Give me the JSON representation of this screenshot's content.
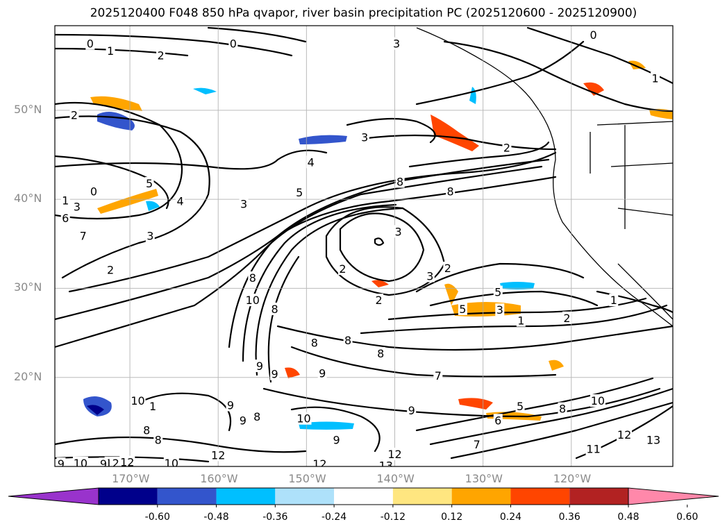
{
  "title": "2025120400 F048 850 hPa qvapor, river basin precipitation PC (2025120600 - 2025120900)",
  "axes": {
    "lat_ticks": [
      {
        "value": 50,
        "label": "50°N"
      },
      {
        "value": 40,
        "label": "40°N"
      },
      {
        "value": 30,
        "label": "30°N"
      },
      {
        "value": 20,
        "label": "20°N"
      }
    ],
    "lon_ticks": [
      {
        "value": -170,
        "label": "170°W"
      },
      {
        "value": -160,
        "label": "160°W"
      },
      {
        "value": -150,
        "label": "150°W"
      },
      {
        "value": -140,
        "label": "140°W"
      },
      {
        "value": -130,
        "label": "130°W"
      },
      {
        "value": -120,
        "label": "120°W"
      }
    ],
    "lon_range": [
      -178.5,
      -108.5
    ],
    "lat_range": [
      10,
      59.5
    ],
    "grid": true
  },
  "colorbar": {
    "bounds": [
      "-0.60",
      "-0.48",
      "-0.36",
      "-0.24",
      "-0.12",
      "0.12",
      "0.24",
      "0.36",
      "0.48",
      "0.60"
    ],
    "colors": [
      "#9933cc",
      "#00008b",
      "#3355cc",
      "#00bfff",
      "#aee1fa",
      "#ffffff",
      "#ffe680",
      "#ffa500",
      "#ff4500",
      "#b22222",
      "#ff88aa"
    ],
    "extend": "both"
  },
  "contour_labels": [
    {
      "text": "0",
      "lon": -174.5,
      "lat": 57.5
    },
    {
      "text": "1",
      "lon": -172.2,
      "lat": 56.7
    },
    {
      "text": "2",
      "lon": -166.5,
      "lat": 56.2
    },
    {
      "text": "0",
      "lon": -158.3,
      "lat": 57.5
    },
    {
      "text": "3",
      "lon": -139.8,
      "lat": 57.5
    },
    {
      "text": "0",
      "lon": -117.5,
      "lat": 58.5
    },
    {
      "text": "1",
      "lon": -110.5,
      "lat": 53.6
    },
    {
      "text": "2",
      "lon": -176.3,
      "lat": 49.5
    },
    {
      "text": "3",
      "lon": -143.4,
      "lat": 47.0
    },
    {
      "text": "2",
      "lon": -127.3,
      "lat": 45.8
    },
    {
      "text": "4",
      "lon": -149.5,
      "lat": 44.2
    },
    {
      "text": "5",
      "lon": -150.8,
      "lat": 40.8
    },
    {
      "text": "8",
      "lon": -139.4,
      "lat": 42.0
    },
    {
      "text": "8",
      "lon": -133.7,
      "lat": 40.9
    },
    {
      "text": "0",
      "lon": -174.1,
      "lat": 40.9
    },
    {
      "text": "1",
      "lon": -177.3,
      "lat": 39.9
    },
    {
      "text": "5",
      "lon": -167.8,
      "lat": 41.8
    },
    {
      "text": "4",
      "lon": -164.3,
      "lat": 39.8
    },
    {
      "text": "3",
      "lon": -176.0,
      "lat": 39.2
    },
    {
      "text": "6",
      "lon": -177.3,
      "lat": 37.9
    },
    {
      "text": "3",
      "lon": -157.1,
      "lat": 39.5
    },
    {
      "text": "7",
      "lon": -175.3,
      "lat": 35.9
    },
    {
      "text": "3",
      "lon": -167.7,
      "lat": 35.9
    },
    {
      "text": "3",
      "lon": -139.6,
      "lat": 36.4
    },
    {
      "text": "2",
      "lon": -172.2,
      "lat": 32.1
    },
    {
      "text": "2",
      "lon": -145.9,
      "lat": 32.2
    },
    {
      "text": "2",
      "lon": -134.0,
      "lat": 32.3
    },
    {
      "text": "3",
      "lon": -136.0,
      "lat": 31.4
    },
    {
      "text": "5",
      "lon": -128.3,
      "lat": 29.6
    },
    {
      "text": "8",
      "lon": -156.1,
      "lat": 31.2
    },
    {
      "text": "10",
      "lon": -156.1,
      "lat": 28.7
    },
    {
      "text": "2",
      "lon": -141.8,
      "lat": 28.7
    },
    {
      "text": "5",
      "lon": -132.3,
      "lat": 27.7
    },
    {
      "text": "3",
      "lon": -128.1,
      "lat": 27.6
    },
    {
      "text": "1",
      "lon": -125.7,
      "lat": 26.4
    },
    {
      "text": "2",
      "lon": -120.5,
      "lat": 26.7
    },
    {
      "text": "1",
      "lon": -115.2,
      "lat": 28.7
    },
    {
      "text": "8",
      "lon": -153.6,
      "lat": 27.7
    },
    {
      "text": "8",
      "lon": -149.1,
      "lat": 23.9
    },
    {
      "text": "8",
      "lon": -145.3,
      "lat": 24.2
    },
    {
      "text": "8",
      "lon": -141.6,
      "lat": 22.7
    },
    {
      "text": "9",
      "lon": -155.3,
      "lat": 21.3
    },
    {
      "text": "9",
      "lon": -153.6,
      "lat": 20.4
    },
    {
      "text": "9",
      "lon": -148.2,
      "lat": 20.5
    },
    {
      "text": "7",
      "lon": -135.1,
      "lat": 20.2
    },
    {
      "text": "10",
      "lon": -169.1,
      "lat": 17.4
    },
    {
      "text": "1",
      "lon": -167.4,
      "lat": 16.8
    },
    {
      "text": "9",
      "lon": -158.6,
      "lat": 16.9
    },
    {
      "text": "8",
      "lon": -155.6,
      "lat": 15.6
    },
    {
      "text": "9",
      "lon": -157.2,
      "lat": 15.2
    },
    {
      "text": "10",
      "lon": -150.3,
      "lat": 15.4
    },
    {
      "text": "9",
      "lon": -146.6,
      "lat": 13.0
    },
    {
      "text": "8",
      "lon": -168.1,
      "lat": 14.1
    },
    {
      "text": "8",
      "lon": -166.8,
      "lat": 13.0
    },
    {
      "text": "9",
      "lon": -138.1,
      "lat": 16.3
    },
    {
      "text": "5",
      "lon": -125.8,
      "lat": 16.8
    },
    {
      "text": "6",
      "lon": -128.3,
      "lat": 15.2
    },
    {
      "text": "8",
      "lon": -121.0,
      "lat": 16.5
    },
    {
      "text": "10",
      "lon": -117.0,
      "lat": 17.4
    },
    {
      "text": "12",
      "lon": -114.0,
      "lat": 13.6
    },
    {
      "text": "13",
      "lon": -110.7,
      "lat": 13.0
    },
    {
      "text": "11",
      "lon": -117.5,
      "lat": 12.0
    },
    {
      "text": "7",
      "lon": -130.7,
      "lat": 12.5
    },
    {
      "text": "12",
      "lon": -140.0,
      "lat": 11.4
    },
    {
      "text": "12",
      "lon": -148.5,
      "lat": 10.3
    },
    {
      "text": "13",
      "lon": -141.0,
      "lat": 10.1
    },
    {
      "text": "12",
      "lon": -160.0,
      "lat": 11.3
    },
    {
      "text": "12",
      "lon": -172.0,
      "lat": 10.4
    },
    {
      "text": "9",
      "lon": -177.8,
      "lat": 10.3
    },
    {
      "text": "10",
      "lon": -175.6,
      "lat": 10.4
    },
    {
      "text": "9",
      "lon": -173.0,
      "lat": 10.3
    },
    {
      "text": "12",
      "lon": -170.3,
      "lat": 10.5
    },
    {
      "text": "10",
      "lon": -165.3,
      "lat": 10.4
    }
  ]
}
